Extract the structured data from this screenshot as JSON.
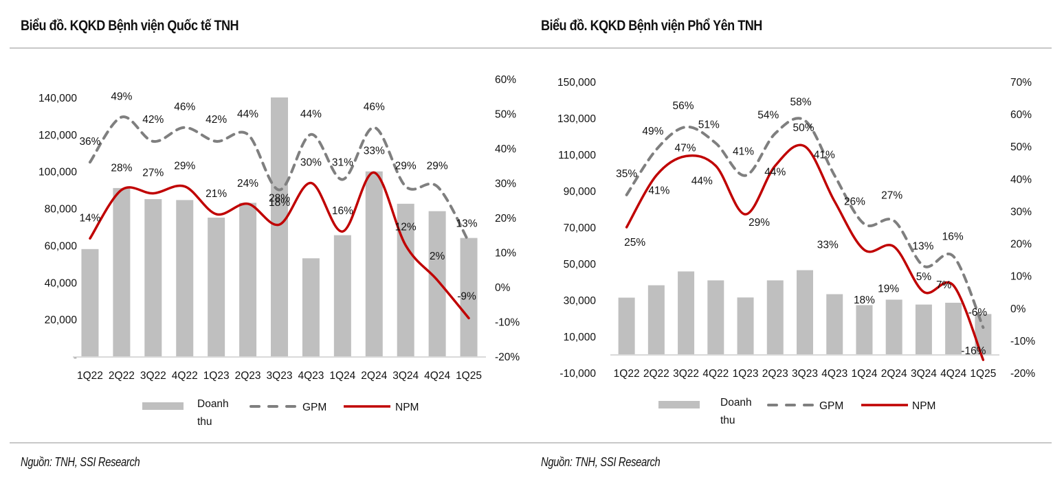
{
  "charts": [
    {
      "title": "Biểu đồ. KQKD Bệnh viện Quốc tế TNH",
      "source": "Nguồn: TNH, SSI Research",
      "legend": [
        "Doanh",
        "thu",
        "GPM",
        "NPM"
      ]
    },
    {
      "title": "Biểu đồ. KQKD Bệnh viện Phổ Yên TNH",
      "source": "Nguồn: TNH, SSI Research",
      "legend": [
        "Doanh",
        "thu",
        "GPM",
        "NPM"
      ]
    }
  ],
  "colors": {
    "bar": "#bfbfbf",
    "gpm": "#7f7f7f",
    "npm": "#c00000",
    "axis": "#d9d9d9"
  },
  "chart_data": [
    {
      "type": "bar",
      "title": "Biểu đồ. KQKD Bệnh viện Quốc tế TNH",
      "categories": [
        "1Q22",
        "2Q22",
        "3Q22",
        "4Q22",
        "1Q23",
        "2Q23",
        "3Q23",
        "4Q23",
        "1Q24",
        "2Q24",
        "3Q24",
        "4Q24",
        "1Q25"
      ],
      "series": [
        {
          "name": "Doanh thu",
          "type": "bar",
          "axis": "left",
          "values": [
            58000,
            91000,
            85000,
            84500,
            75000,
            83000,
            140000,
            53000,
            65500,
            100000,
            82500,
            78500,
            64000
          ]
        },
        {
          "name": "GPM",
          "type": "line",
          "style": "dashed",
          "axis": "right",
          "values": [
            36,
            49,
            42,
            46,
            42,
            44,
            28,
            44,
            31,
            46,
            29,
            29,
            13
          ],
          "labels": [
            "36%",
            "49%",
            "42%",
            "46%",
            "42%",
            "44%",
            "28%",
            "44%",
            "31%",
            "46%",
            "29%",
            "29%",
            "13%"
          ]
        },
        {
          "name": "NPM",
          "type": "line",
          "style": "solid",
          "axis": "right",
          "values": [
            14,
            28,
            27,
            29,
            21,
            24,
            18,
            30,
            16,
            33,
            12,
            2,
            -9
          ],
          "labels": [
            "14%",
            "28%",
            "27%",
            "29%",
            "21%",
            "24%",
            "18%",
            "30%",
            "16%",
            "33%",
            "12%",
            "2%",
            "-9%"
          ]
        }
      ],
      "left_axis": {
        "ylim": [
          0,
          150000
        ],
        "ticks": [
          0,
          20000,
          40000,
          60000,
          80000,
          100000,
          120000,
          140000
        ],
        "tick_labels": [
          "-",
          "20,000",
          "40,000",
          "60,000",
          "80,000",
          "100,000",
          "120,000",
          "140,000"
        ]
      },
      "right_axis": {
        "ylim": [
          -20,
          60
        ],
        "ticks": [
          -20,
          -10,
          0,
          10,
          20,
          30,
          40,
          50,
          60
        ],
        "tick_labels": [
          "-20%",
          "-10%",
          "0%",
          "10%",
          "20%",
          "30%",
          "40%",
          "50%",
          "60%"
        ]
      },
      "legend_position": "bottom",
      "grid": false
    },
    {
      "type": "bar",
      "title": "Biểu đồ. KQKD Bệnh viện Phổ Yên TNH",
      "categories": [
        "1Q22",
        "2Q22",
        "3Q22",
        "4Q22",
        "1Q23",
        "2Q23",
        "3Q23",
        "4Q23",
        "1Q24",
        "2Q24",
        "3Q24",
        "4Q24",
        "1Q25"
      ],
      "series": [
        {
          "name": "Doanh thu",
          "type": "bar",
          "axis": "left",
          "values": [
            31300,
            38100,
            45700,
            40800,
            31400,
            40800,
            46400,
            33200,
            27200,
            30200,
            27500,
            28500,
            22300
          ]
        },
        {
          "name": "GPM",
          "type": "line",
          "style": "dashed",
          "axis": "right",
          "values": [
            35,
            49,
            56,
            51,
            41,
            54,
            58,
            41,
            26,
            27,
            13,
            16,
            -6
          ],
          "labels": [
            "35%",
            "49%",
            "56%",
            "51%",
            "41%",
            "54%",
            "58%",
            "41%",
            "26%",
            "27%",
            "13%",
            "16%",
            "-6%"
          ]
        },
        {
          "name": "NPM",
          "type": "line",
          "style": "solid",
          "axis": "right",
          "values": [
            25,
            41,
            47,
            44,
            29,
            44,
            50,
            33,
            18,
            19,
            5,
            7,
            -16
          ],
          "labels": [
            "25%",
            "41%",
            "47%",
            "44%",
            "29%",
            "44%",
            "50%",
            "33%",
            "18%",
            "19%",
            "5%",
            "7%",
            "-16%"
          ]
        }
      ],
      "left_axis": {
        "ylim": [
          -10000,
          150000
        ],
        "ticks": [
          -10000,
          10000,
          30000,
          50000,
          70000,
          90000,
          110000,
          130000,
          150000
        ],
        "tick_labels": [
          "-10,000",
          "10,000",
          "30,000",
          "50,000",
          "70,000",
          "90,000",
          "110,000",
          "130,000",
          "150,000"
        ]
      },
      "right_axis": {
        "ylim": [
          -20,
          70
        ],
        "ticks": [
          -20,
          -10,
          0,
          10,
          20,
          30,
          40,
          50,
          60,
          70
        ],
        "tick_labels": [
          "-20%",
          "-10%",
          "0%",
          "10%",
          "20%",
          "30%",
          "40%",
          "50%",
          "60%",
          "70%"
        ]
      },
      "legend_position": "bottom",
      "grid": false
    }
  ]
}
